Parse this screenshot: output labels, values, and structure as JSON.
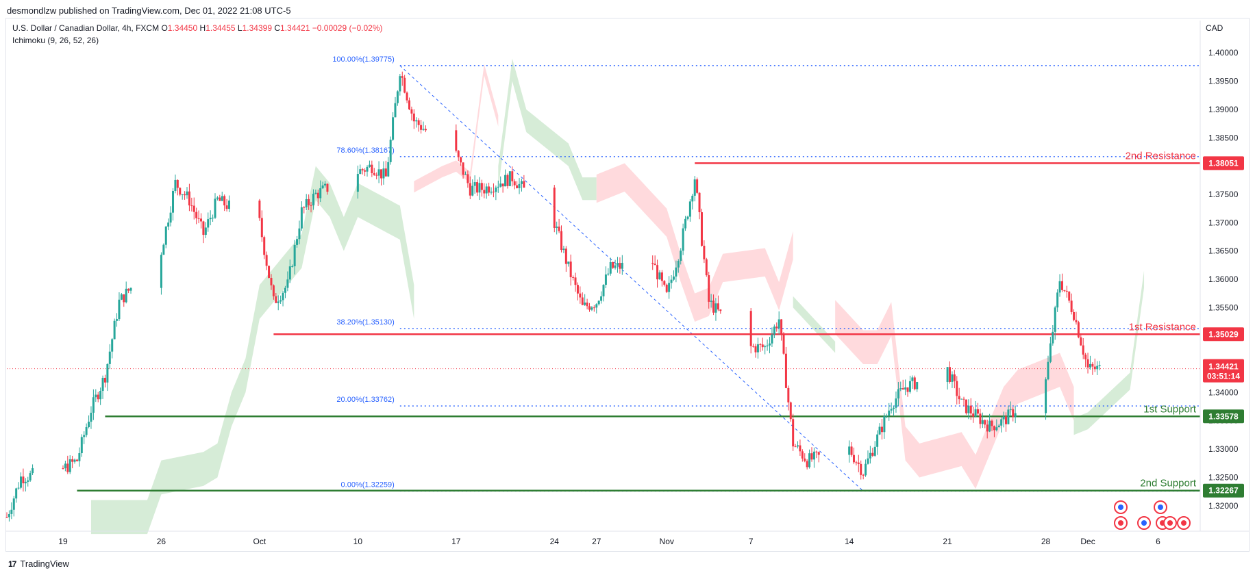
{
  "header": {
    "published": "desmondlzw published on TradingView.com, Dec 01, 2022 21:08 UTC-5",
    "symbol": "U.S. Dollar / Canadian Dollar, 4h, FXCM",
    "o_label": "O",
    "o_value": "1.34450",
    "h_label": "H",
    "h_value": "1.34455",
    "l_label": "L",
    "l_value": "1.34399",
    "c_label": "C",
    "c_value": "1.34421",
    "change": "−0.00029 (−0.02%)",
    "indicator": "Ichimoku (9, 26, 52, 26)",
    "currency": "CAD"
  },
  "footer": {
    "brand": "TradingView",
    "logo": "17"
  },
  "colors": {
    "up": "#26a69a",
    "down": "#f23645",
    "resistance": "#f23645",
    "support": "#2e7d32",
    "fib": "#2962ff",
    "cloud_bull": "#c8e6c9",
    "cloud_bear": "#ffcdd2"
  },
  "chart_data": {
    "type": "candlestick",
    "ylim": [
      1.3155,
      1.4045
    ],
    "yticks": [
      "1.40000",
      "1.39500",
      "1.39000",
      "1.38500",
      "1.38000",
      "1.37500",
      "1.37000",
      "1.36500",
      "1.36000",
      "1.35500",
      "1.35000",
      "1.34500",
      "1.34000",
      "1.33500",
      "1.33000",
      "1.32500",
      "1.32000"
    ],
    "xticks": [
      "19",
      "26",
      "Oct",
      "10",
      "17",
      "24",
      "27",
      "Nov",
      "7",
      "14",
      "21",
      "28",
      "Dec",
      "6"
    ],
    "last_price": "1.34421",
    "countdown": "03:51:14",
    "levels": [
      {
        "name": "2nd Resistance",
        "value": 1.38051,
        "badge": "1.38051",
        "kind": "resistance"
      },
      {
        "name": "1st Resistance",
        "value": 1.35029,
        "badge": "1.35029",
        "kind": "resistance"
      },
      {
        "name": "1st Support",
        "value": 1.33578,
        "badge": "1.33578",
        "kind": "support"
      },
      {
        "name": "2nd Support",
        "value": 1.32267,
        "badge": "1.32267",
        "kind": "support"
      }
    ],
    "fibonacci": [
      {
        "label": "100.00%(1.39775)",
        "value": 1.39775
      },
      {
        "label": "78.60%(1.38167)",
        "value": 1.38167
      },
      {
        "label": "38.20%(1.35130)",
        "value": 1.3513
      },
      {
        "label": "20.00%(1.33762)",
        "value": 1.33762
      },
      {
        "label": "0.00%(1.32259)",
        "value": 1.32259
      }
    ],
    "price_path": [
      [
        "2022-09-15",
        1.318
      ],
      [
        "2022-09-16",
        1.325
      ],
      [
        "2022-09-19",
        1.3265
      ],
      [
        "2022-09-20",
        1.328
      ],
      [
        "2022-09-21",
        1.337
      ],
      [
        "2022-09-22",
        1.343
      ],
      [
        "2022-09-23",
        1.356
      ],
      [
        "2022-09-26",
        1.365
      ],
      [
        "2022-09-27",
        1.377
      ],
      [
        "2022-09-28",
        1.374
      ],
      [
        "2022-09-29",
        1.368
      ],
      [
        "2022-09-30",
        1.374
      ],
      [
        "2022-10-03",
        1.37
      ],
      [
        "2022-10-04",
        1.356
      ],
      [
        "2022-10-05",
        1.359
      ],
      [
        "2022-10-06",
        1.372
      ],
      [
        "2022-10-07",
        1.375
      ],
      [
        "2022-10-10",
        1.379
      ],
      [
        "2022-10-11",
        1.38
      ],
      [
        "2022-10-12",
        1.378
      ],
      [
        "2022-10-13",
        1.397
      ],
      [
        "2022-10-14",
        1.388
      ],
      [
        "2022-10-17",
        1.382
      ],
      [
        "2022-10-18",
        1.376
      ],
      [
        "2022-10-19",
        1.376
      ],
      [
        "2022-10-20",
        1.377
      ],
      [
        "2022-10-21",
        1.378
      ],
      [
        "2022-10-24",
        1.37
      ],
      [
        "2022-10-25",
        1.362
      ],
      [
        "2022-10-26",
        1.355
      ],
      [
        "2022-10-27",
        1.356
      ],
      [
        "2022-10-28",
        1.362
      ],
      [
        "2022-10-31",
        1.363
      ],
      [
        "2022-11-01",
        1.357
      ],
      [
        "2022-11-02",
        1.366
      ],
      [
        "2022-11-03",
        1.378
      ],
      [
        "2022-11-04",
        1.356
      ],
      [
        "2022-11-07",
        1.348
      ],
      [
        "2022-11-08",
        1.348
      ],
      [
        "2022-11-09",
        1.353
      ],
      [
        "2022-11-10",
        1.331
      ],
      [
        "2022-11-11",
        1.328
      ],
      [
        "2022-11-14",
        1.33
      ],
      [
        "2022-11-15",
        1.326
      ],
      [
        "2022-11-16",
        1.332
      ],
      [
        "2022-11-17",
        1.338
      ],
      [
        "2022-11-18",
        1.341
      ],
      [
        "2022-11-21",
        1.344
      ],
      [
        "2022-11-22",
        1.338
      ],
      [
        "2022-11-23",
        1.336
      ],
      [
        "2022-11-24",
        1.334
      ],
      [
        "2022-11-25",
        1.335
      ],
      [
        "2022-11-28",
        1.342
      ],
      [
        "2022-11-29",
        1.36
      ],
      [
        "2022-11-30",
        1.354
      ],
      [
        "2022-12-01",
        1.3442
      ]
    ]
  }
}
